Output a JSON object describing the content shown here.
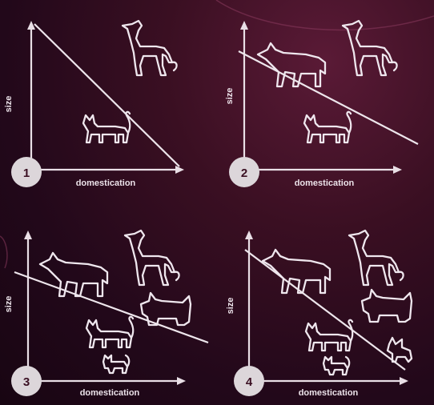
{
  "panels": [
    {
      "number": "1",
      "xlabel": "domestication",
      "ylabel": "size"
    },
    {
      "number": "2",
      "xlabel": "domestication",
      "ylabel": "size"
    },
    {
      "number": "3",
      "xlabel": "domestication",
      "ylabel": "size"
    },
    {
      "number": "4",
      "xlabel": "domestication",
      "ylabel": "size"
    }
  ],
  "colors": {
    "background": "#3a0f22",
    "line": "#eee6ec",
    "badge": "#dcd6da"
  },
  "icons": [
    "dog-icon",
    "cat-icon",
    "wolf-icon",
    "terrier-icon",
    "kitten-icon",
    "puppy-icon"
  ]
}
